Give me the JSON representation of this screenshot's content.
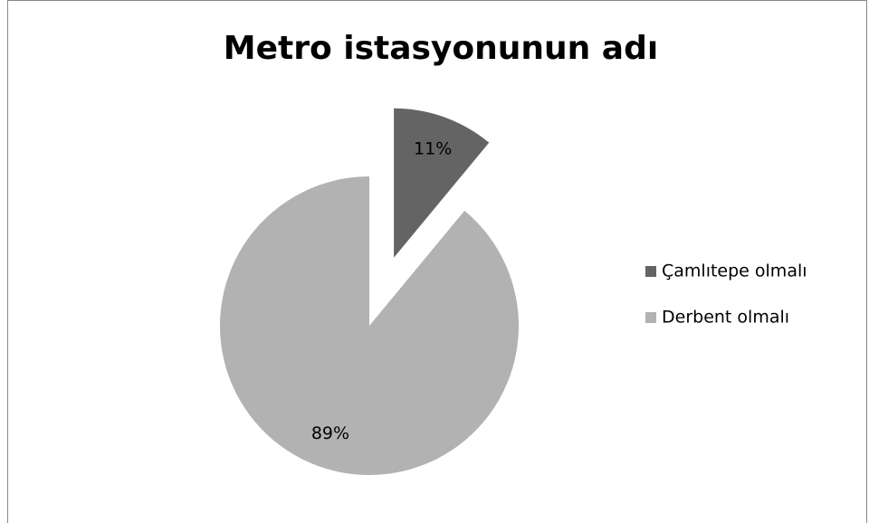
{
  "chart_data": {
    "type": "pie",
    "title": "Metro istasyonunun adı",
    "categories": [
      "Çamlıtepe olmalı",
      "Derbent olmalı"
    ],
    "values": [
      11,
      89
    ],
    "value_labels": [
      "11%",
      "89%"
    ],
    "colors": [
      "#646464",
      "#b2b2b2"
    ],
    "legend": "right"
  }
}
